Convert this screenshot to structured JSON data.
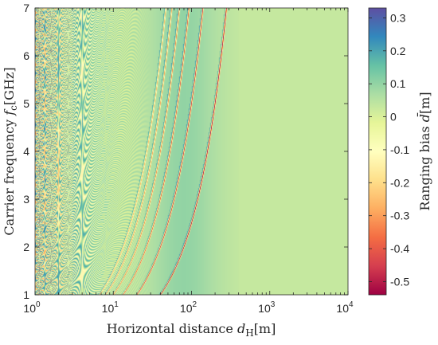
{
  "chart_data": {
    "type": "heatmap",
    "title": "",
    "xlabel": {
      "prefix": "Horizontal distance ",
      "var": "d",
      "sub": "H",
      "unit": "[m]"
    },
    "ylabel": {
      "prefix": "Carrier frequency ",
      "var": "f",
      "sub": "c",
      "unit": "[GHz]"
    },
    "colorbar_label": {
      "prefix": "Ranging bias ",
      "var": "d̄",
      "unit": "[m]"
    },
    "x_scale": "log",
    "xlim": [
      1,
      10000
    ],
    "ylim": [
      1,
      7
    ],
    "clim": [
      -0.54,
      0.33
    ],
    "x_ticks": [
      {
        "base": "10",
        "exp": "0",
        "value": 1
      },
      {
        "base": "10",
        "exp": "1",
        "value": 10
      },
      {
        "base": "10",
        "exp": "2",
        "value": 100
      },
      {
        "base": "10",
        "exp": "3",
        "value": 1000
      },
      {
        "base": "10",
        "exp": "4",
        "value": 10000
      }
    ],
    "y_ticks": [
      {
        "label": "1",
        "value": 1
      },
      {
        "label": "2",
        "value": 2
      },
      {
        "label": "3",
        "value": 3
      },
      {
        "label": "4",
        "value": 4
      },
      {
        "label": "5",
        "value": 5
      },
      {
        "label": "6",
        "value": 6
      },
      {
        "label": "7",
        "value": 7
      }
    ],
    "colorbar_ticks": [
      {
        "label": "0.3",
        "value": 0.3
      },
      {
        "label": "0.2",
        "value": 0.2
      },
      {
        "label": "0.1",
        "value": 0.1
      },
      {
        "label": "0",
        "value": 0
      },
      {
        "label": "-0.1",
        "value": -0.1
      },
      {
        "label": "-0.2",
        "value": -0.2
      },
      {
        "label": "-0.3",
        "value": -0.3
      },
      {
        "label": "-0.4",
        "value": -0.4
      },
      {
        "label": "-0.5",
        "value": -0.5
      }
    ],
    "colormap": [
      "#9e0142",
      "#d53e4f",
      "#f46d43",
      "#fdae61",
      "#fee08b",
      "#ffffbf",
      "#e6f598",
      "#abdda4",
      "#66c2a5",
      "#3288bd",
      "#5e4fa2"
    ],
    "background_value": 0.03,
    "fringes": [
      {
        "d_at_1GHz": 40,
        "d_at_7GHz": 280,
        "value": -0.52
      },
      {
        "d_at_1GHz": 20,
        "d_at_7GHz": 140,
        "value": -0.46
      },
      {
        "d_at_1GHz": 13.3,
        "d_at_7GHz": 93,
        "value": -0.4
      },
      {
        "d_at_1GHz": 10,
        "d_at_7GHz": 70,
        "value": -0.34
      },
      {
        "d_at_1GHz": 8,
        "d_at_7GHz": 56,
        "value": -0.3
      },
      {
        "d_at_1GHz": 6.7,
        "d_at_7GHz": 47,
        "value": -0.26
      }
    ],
    "interference_region": {
      "x_from": 1,
      "x_to": 30,
      "value_range": [
        -0.5,
        0.33
      ]
    },
    "grid": false,
    "legend": "none",
    "colorbar": "right"
  }
}
